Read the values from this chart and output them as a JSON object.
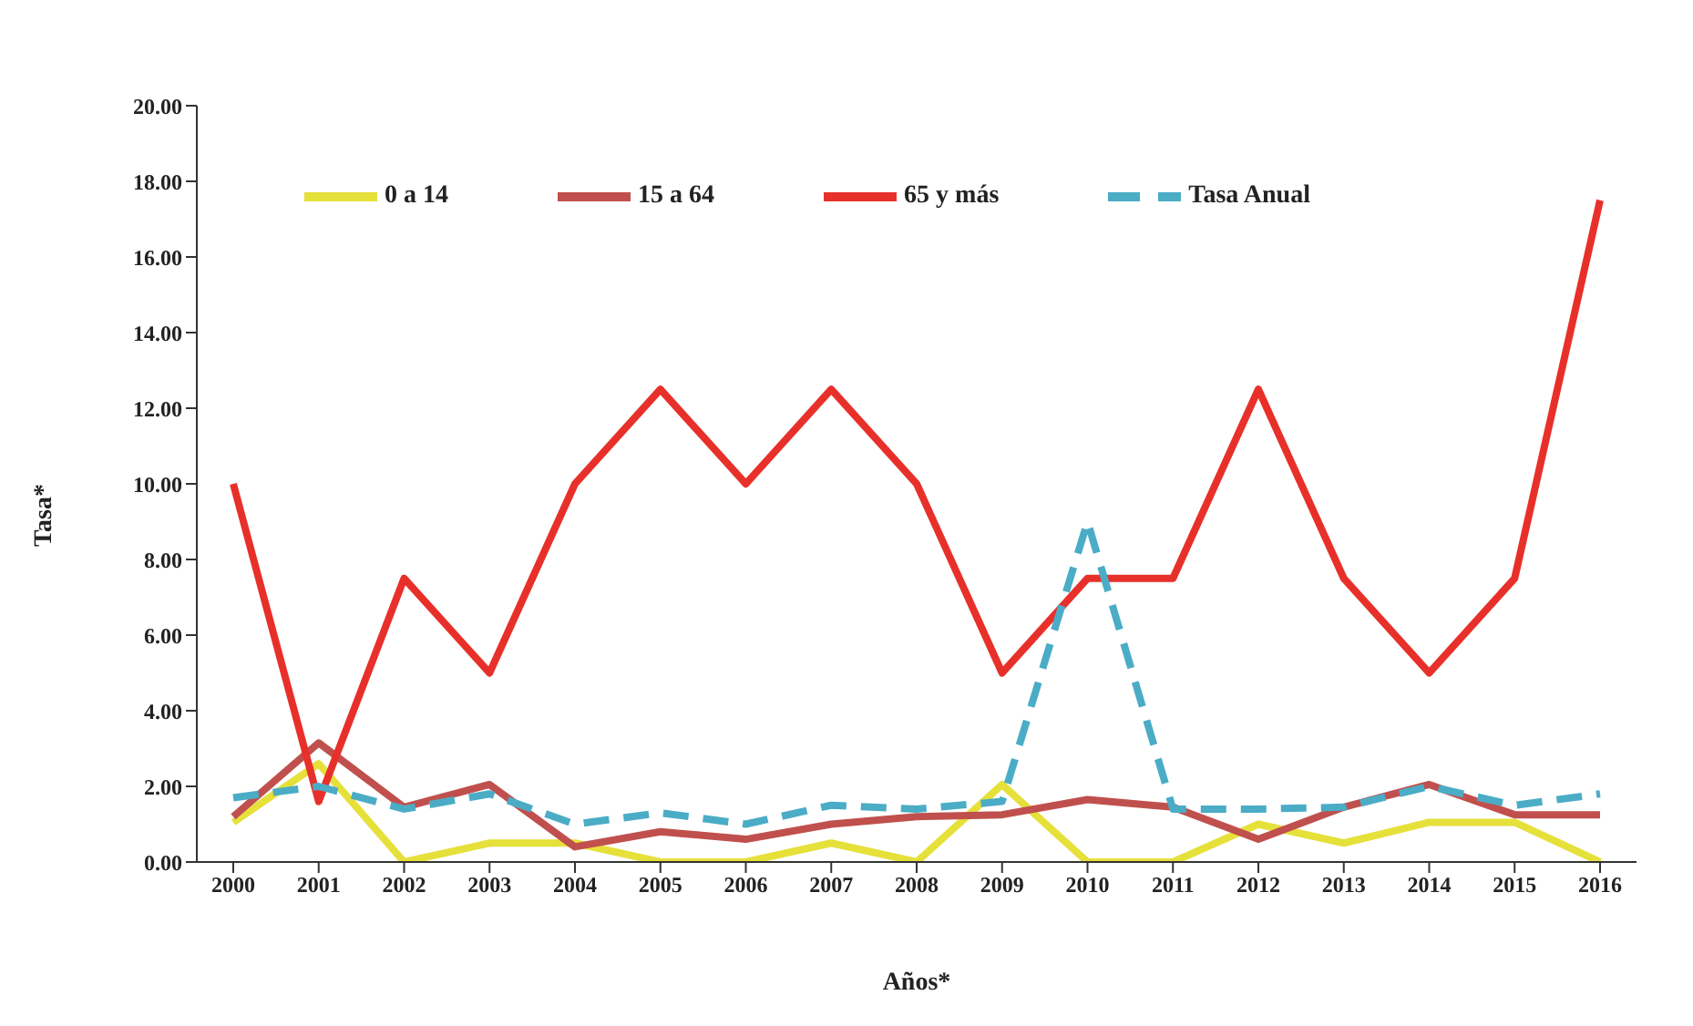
{
  "chart_data": {
    "type": "line",
    "xlabel": "Años*",
    "ylabel": "Tasa*",
    "categories": [
      "2000",
      "2001",
      "2002",
      "2003",
      "2004",
      "2005",
      "2006",
      "2007",
      "2008",
      "2009",
      "2010",
      "2011",
      "2012",
      "2013",
      "2014",
      "2015",
      "2016"
    ],
    "ylim": [
      0,
      20
    ],
    "yticks": [
      {
        "value": 0,
        "label": "0.00"
      },
      {
        "value": 2,
        "label": "2.00"
      },
      {
        "value": 4,
        "label": "4.00"
      },
      {
        "value": 6,
        "label": "6.00"
      },
      {
        "value": 8,
        "label": "8.00"
      },
      {
        "value": 10,
        "label": "10.00"
      },
      {
        "value": 12,
        "label": "12.00"
      },
      {
        "value": 14,
        "label": "14.00"
      },
      {
        "value": 16,
        "label": "16.00"
      },
      {
        "value": 18,
        "label": "18.00"
      },
      {
        "value": 20,
        "label": "20.00"
      }
    ],
    "legend": "top",
    "grid": false,
    "series": [
      {
        "name": "0 a 14",
        "color": "#e6e03a",
        "line_style": "solid",
        "values": [
          1.05,
          2.6,
          0,
          0.5,
          0.5,
          0,
          0,
          0.5,
          0,
          2.05,
          0,
          0,
          1.0,
          0.5,
          1.05,
          1.05,
          0
        ]
      },
      {
        "name": "15 a 64",
        "color": "#c0504d",
        "line_style": "solid",
        "values": [
          1.2,
          3.15,
          1.45,
          2.05,
          0.4,
          0.8,
          0.6,
          1.0,
          1.2,
          1.25,
          1.65,
          1.45,
          0.6,
          1.45,
          2.05,
          1.25,
          1.25
        ]
      },
      {
        "name": "65 y más",
        "color": "#e8302a",
        "line_style": "solid",
        "values": [
          10,
          1.6,
          7.5,
          5,
          10,
          12.5,
          10,
          12.5,
          10,
          5,
          7.5,
          7.5,
          12.5,
          7.5,
          5,
          7.5,
          17.5
        ]
      },
      {
        "name": "Tasa Anual",
        "color": "#4bacc6",
        "line_style": "dashed",
        "values": [
          1.7,
          2.0,
          1.4,
          1.8,
          1.0,
          1.3,
          1.0,
          1.5,
          1.4,
          1.6,
          9.0,
          1.4,
          1.4,
          1.45,
          2.0,
          1.5,
          1.8
        ]
      }
    ]
  }
}
